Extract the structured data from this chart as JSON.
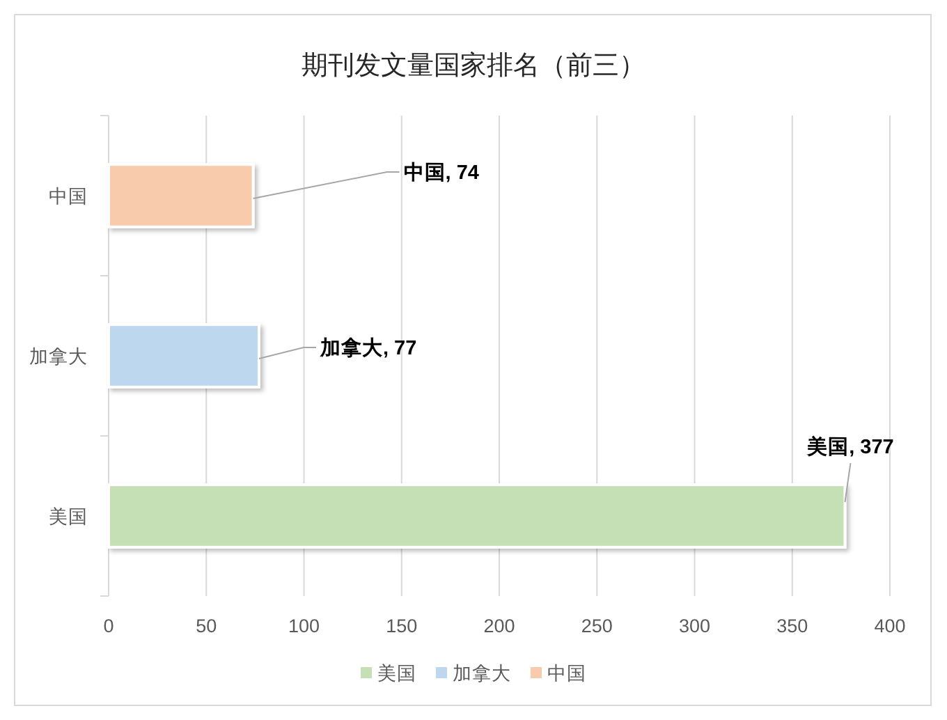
{
  "chart_data": {
    "type": "bar",
    "orientation": "horizontal",
    "title": "期刊发文量国家排名（前三）",
    "categories": [
      "中国",
      "加拿大",
      "美国"
    ],
    "series": [
      {
        "name": "美国",
        "color": "#c5e0b4",
        "values": [
          null,
          null,
          377
        ],
        "value_labels": [
          null,
          null,
          "美国, 377"
        ]
      },
      {
        "name": "加拿大",
        "color": "#bdd7ee",
        "values": [
          null,
          77,
          null
        ],
        "value_labels": [
          null,
          "加拿大, 77",
          null
        ]
      },
      {
        "name": "中国",
        "color": "#f8cbad",
        "values": [
          74,
          null,
          null
        ],
        "value_labels": [
          "中国, 74",
          null,
          null
        ]
      }
    ],
    "xlim": [
      0,
      400
    ],
    "xticks": [
      0,
      50,
      100,
      150,
      200,
      250,
      300,
      350,
      400
    ],
    "grid": "x",
    "legend": "bottom"
  }
}
